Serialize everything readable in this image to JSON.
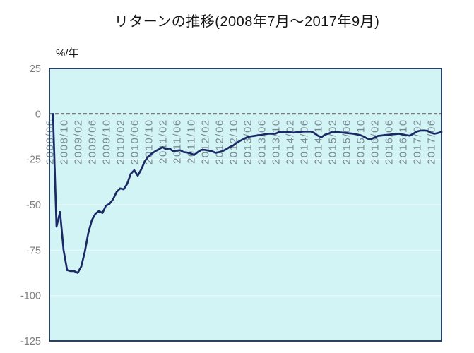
{
  "title": "リターンの推移(2008年7月～2017年9月)",
  "y_axis_unit": "%/年",
  "chart_data": {
    "type": "line",
    "title": "リターンの推移(2008年7月～2017年9月)",
    "ylabel": "%/年",
    "xlabel": "",
    "ylim": [
      -125,
      25
    ],
    "y_ticks": [
      25,
      0,
      -25,
      -50,
      -75,
      -100,
      -125
    ],
    "y_tick_labels": [
      "25",
      "0",
      "-25",
      "-50",
      "-75",
      "-100",
      "-125"
    ],
    "x_label_every_n_months": 4,
    "x_labels_shown": [
      "2008/06",
      "2008/10",
      "2009/02",
      "2009/06",
      "2009/10",
      "2010/02",
      "2010/06",
      "2010/10",
      "2011/02",
      "2011/06",
      "2011/10",
      "2012/02",
      "2012/06",
      "2012/10",
      "2013/02",
      "2013/06",
      "2013/10",
      "2014/02",
      "2014/06",
      "2014/10",
      "2015/02",
      "2015/06",
      "2015/10",
      "2016/02",
      "2016/06",
      "2016/10",
      "2017/02",
      "2017/06"
    ],
    "grid": true,
    "legend_position": "none",
    "zero_line_style": "dashed-black",
    "colors": {
      "line": "#1b2a66",
      "plot_background": "#d3f4f5",
      "plot_border": "#1a2d52",
      "gridline": "#eafbfb",
      "axis_text": "#7f7f7f",
      "x_tick_text": "#7a8a94",
      "zero_line": "#111111"
    },
    "categories": [
      "2008/06",
      "2008/07",
      "2008/08",
      "2008/09",
      "2008/10",
      "2008/11",
      "2008/12",
      "2009/01",
      "2009/02",
      "2009/03",
      "2009/04",
      "2009/05",
      "2009/06",
      "2009/07",
      "2009/08",
      "2009/09",
      "2009/10",
      "2009/11",
      "2009/12",
      "2010/01",
      "2010/02",
      "2010/03",
      "2010/04",
      "2010/05",
      "2010/06",
      "2010/07",
      "2010/08",
      "2010/09",
      "2010/10",
      "2010/11",
      "2010/12",
      "2011/01",
      "2011/02",
      "2011/03",
      "2011/04",
      "2011/05",
      "2011/06",
      "2011/07",
      "2011/08",
      "2011/09",
      "2011/10",
      "2011/11",
      "2011/12",
      "2012/01",
      "2012/02",
      "2012/03",
      "2012/04",
      "2012/05",
      "2012/06",
      "2012/07",
      "2012/08",
      "2012/09",
      "2012/10",
      "2012/11",
      "2012/12",
      "2013/01",
      "2013/02",
      "2013/03",
      "2013/04",
      "2013/05",
      "2013/06",
      "2013/07",
      "2013/08",
      "2013/09",
      "2013/10",
      "2013/11",
      "2013/12",
      "2014/01",
      "2014/02",
      "2014/03",
      "2014/04",
      "2014/05",
      "2014/06",
      "2014/07",
      "2014/08",
      "2014/09",
      "2014/10",
      "2014/11",
      "2014/12",
      "2015/01",
      "2015/02",
      "2015/03",
      "2015/04",
      "2015/05",
      "2015/06",
      "2015/07",
      "2015/08",
      "2015/09",
      "2015/10",
      "2015/11",
      "2015/12",
      "2016/01",
      "2016/02",
      "2016/03",
      "2016/04",
      "2016/05",
      "2016/06",
      "2016/07",
      "2016/08",
      "2016/09",
      "2016/10",
      "2016/11",
      "2016/12",
      "2017/01",
      "2017/02",
      "2017/03",
      "2017/04",
      "2017/05",
      "2017/06",
      "2017/07",
      "2017/08",
      "2017/09"
    ],
    "series": [
      {
        "name": "リターン(%/年)",
        "values": [
          null,
          0,
          -62,
          -54,
          -75,
          -86,
          -86.5,
          -86.5,
          -87.5,
          -84,
          -76,
          -65.5,
          -58.5,
          -55,
          -53.5,
          -54.5,
          -50.5,
          -49.5,
          -47,
          -43,
          -41,
          -41.5,
          -38.5,
          -33,
          -31,
          -34,
          -30.5,
          -26,
          -23.5,
          -21.8,
          -20.5,
          -19.5,
          -18.3,
          -19.5,
          -19,
          -20.6,
          -20.2,
          -20,
          -21,
          -21.3,
          -21.8,
          -22.6,
          -21,
          -19.8,
          -19.8,
          -20.2,
          -20.6,
          -21.4,
          -21,
          -20.5,
          -19.5,
          -18.3,
          -17.4,
          -16,
          -14.8,
          -13.8,
          -12.8,
          -12.4,
          -12.1,
          -11.8,
          -11.6,
          -11.2,
          -10.9,
          -10.9,
          -10.9,
          -10,
          -9.9,
          -10.1,
          -10.1,
          -10.3,
          -10.1,
          -9.9,
          -9.7,
          -9.7,
          -9.7,
          -10.5,
          -12,
          -12.8,
          -11.5,
          -10.8,
          -10.1,
          -10,
          -10.1,
          -10.3,
          -10.5,
          -10.7,
          -10.9,
          -11.3,
          -11.7,
          -12.5,
          -13.6,
          -14,
          -13,
          -12.1,
          -11.9,
          -11.7,
          -11.5,
          -11.3,
          -11.1,
          -10.9,
          -11.3,
          -11.7,
          -12,
          -10.9,
          -9.7,
          -9.2,
          -9.1,
          -9.3,
          -10.4,
          -10.9,
          -10.5,
          -9.9
        ]
      }
    ]
  }
}
